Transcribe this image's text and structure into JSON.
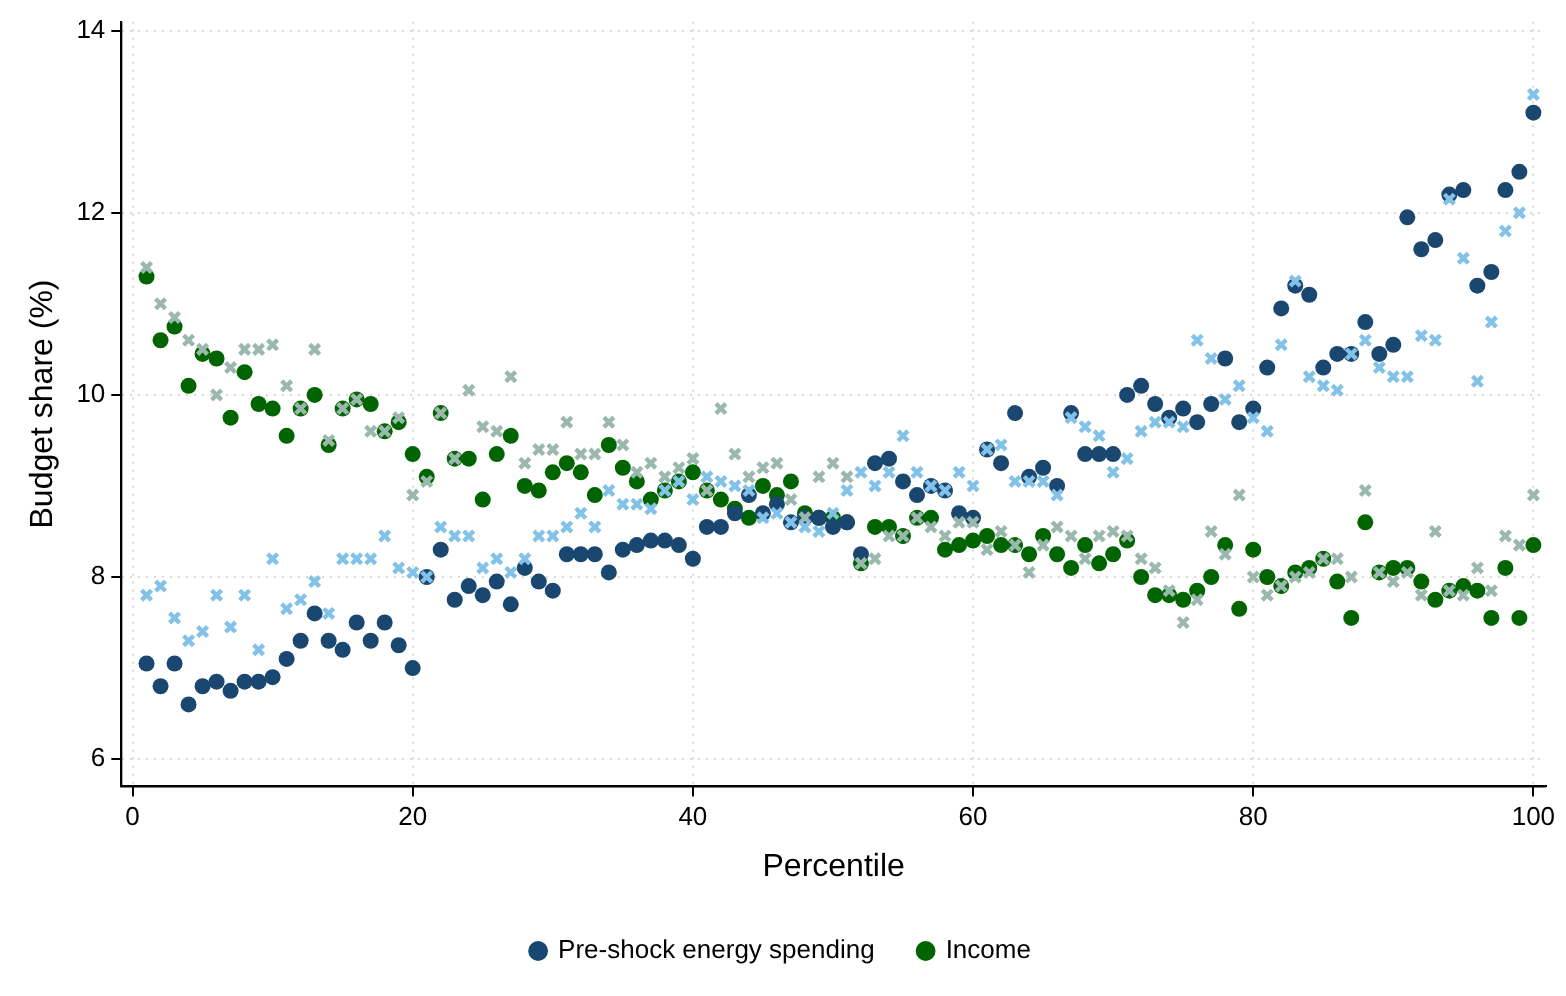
{
  "chart_data": {
    "type": "scatter",
    "xlabel": "Percentile",
    "ylabel": "Budget share (%)",
    "xlim": [
      -0.8,
      100.9
    ],
    "ylim": [
      5.7,
      14.1
    ],
    "xticks": [
      0,
      20,
      40,
      60,
      80,
      100
    ],
    "yticks": [
      6,
      8,
      10,
      12,
      14
    ],
    "grid": true,
    "legend": "bottom",
    "x": [
      1,
      2,
      3,
      4,
      5,
      6,
      7,
      8,
      9,
      10,
      11,
      12,
      13,
      14,
      15,
      16,
      17,
      18,
      19,
      20,
      21,
      22,
      23,
      24,
      25,
      26,
      27,
      28,
      29,
      30,
      31,
      32,
      33,
      34,
      35,
      36,
      37,
      38,
      39,
      40,
      41,
      42,
      43,
      44,
      45,
      46,
      47,
      48,
      49,
      50,
      51,
      52,
      53,
      54,
      55,
      56,
      57,
      58,
      59,
      60,
      61,
      62,
      63,
      64,
      65,
      66,
      67,
      68,
      69,
      70,
      71,
      72,
      73,
      74,
      75,
      76,
      77,
      78,
      79,
      80,
      81,
      82,
      83,
      84,
      85,
      86,
      87,
      88,
      89,
      90,
      91,
      92,
      93,
      94,
      95,
      96,
      97,
      98,
      99,
      100
    ],
    "series": [
      {
        "color": "#83c2e8",
        "marker": "cross",
        "values": [
          7.8,
          7.9,
          7.55,
          7.3,
          7.4,
          7.8,
          7.45,
          7.8,
          7.2,
          8.2,
          7.65,
          7.75,
          7.95,
          7.6,
          8.2,
          8.2,
          8.2,
          8.45,
          8.1,
          8.05,
          8.0,
          8.55,
          8.45,
          8.45,
          8.1,
          8.2,
          8.05,
          8.2,
          8.45,
          8.45,
          8.55,
          8.7,
          8.55,
          8.95,
          8.8,
          8.8,
          8.75,
          8.95,
          9.05,
          8.85,
          9.1,
          9.05,
          9.0,
          8.95,
          8.65,
          8.7,
          8.6,
          8.55,
          8.5,
          8.7,
          8.95,
          9.15,
          9.0,
          9.15,
          9.55,
          9.15,
          9.0,
          8.95,
          9.15,
          9.0,
          9.4,
          9.45,
          9.05,
          9.05,
          9.05,
          8.9,
          9.75,
          9.65,
          9.55,
          9.15,
          9.3,
          9.6,
          9.7,
          9.7,
          9.65,
          10.6,
          10.4,
          9.95,
          10.1,
          9.75,
          9.6,
          10.55,
          11.25,
          10.2,
          10.1,
          10.05,
          10.45,
          10.6,
          10.3,
          10.2,
          10.2,
          10.65,
          10.6,
          12.15,
          11.5,
          10.15,
          10.8,
          11.8,
          12.0,
          13.3
        ]
      },
      {
        "color": "#9ab8ad",
        "marker": "cross",
        "values": [
          11.4,
          11.0,
          10.85,
          10.6,
          10.5,
          10.0,
          10.3,
          10.5,
          10.5,
          10.55,
          10.1,
          9.85,
          10.5,
          9.5,
          9.85,
          9.95,
          9.6,
          9.6,
          9.75,
          8.9,
          9.05,
          9.8,
          9.3,
          10.05,
          9.65,
          9.6,
          10.2,
          9.25,
          9.4,
          9.4,
          9.7,
          9.35,
          9.35,
          9.7,
          9.45,
          9.15,
          9.25,
          9.1,
          9.2,
          9.3,
          8.95,
          9.85,
          9.35,
          9.1,
          9.2,
          9.25,
          8.85,
          8.65,
          9.1,
          9.25,
          9.1,
          8.15,
          8.2,
          8.45,
          8.45,
          8.65,
          8.55,
          8.45,
          8.6,
          8.6,
          8.3,
          8.5,
          8.35,
          8.05,
          8.35,
          8.55,
          8.45,
          8.2,
          8.45,
          8.5,
          8.45,
          8.2,
          8.1,
          7.85,
          7.5,
          7.75,
          8.5,
          8.25,
          8.9,
          8.0,
          7.8,
          7.9,
          8.0,
          8.05,
          8.2,
          8.2,
          8.0,
          8.95,
          8.05,
          7.95,
          8.05,
          7.8,
          8.5,
          7.85,
          7.8,
          8.1,
          7.85,
          8.45,
          8.35,
          8.9
        ]
      },
      {
        "name": "Pre-shock energy spending",
        "color": "#1a476f",
        "marker": "circle",
        "values": [
          7.05,
          6.8,
          7.05,
          6.6,
          6.8,
          6.85,
          6.75,
          6.85,
          6.85,
          6.9,
          7.1,
          7.3,
          7.6,
          7.3,
          7.2,
          7.5,
          7.3,
          7.5,
          7.25,
          7.0,
          8.0,
          8.3,
          7.75,
          7.9,
          7.8,
          7.95,
          7.7,
          8.1,
          7.95,
          7.85,
          8.25,
          8.25,
          8.25,
          8.05,
          8.3,
          8.35,
          8.4,
          8.4,
          8.35,
          8.2,
          8.55,
          8.55,
          8.7,
          8.9,
          8.7,
          8.8,
          8.6,
          8.65,
          8.65,
          8.55,
          8.6,
          8.25,
          9.25,
          9.3,
          9.05,
          8.9,
          9.0,
          8.95,
          8.7,
          8.65,
          9.4,
          9.25,
          9.8,
          9.1,
          9.2,
          9.0,
          9.8,
          9.35,
          9.35,
          9.35,
          10.0,
          10.1,
          9.9,
          9.75,
          9.85,
          9.7,
          9.9,
          10.4,
          9.7,
          9.85,
          10.3,
          10.95,
          11.2,
          11.1,
          10.3,
          10.45,
          10.45,
          10.8,
          10.45,
          10.55,
          11.95,
          11.6,
          11.7,
          12.2,
          12.25,
          11.2,
          11.35,
          12.25,
          12.45,
          13.1
        ]
      },
      {
        "name": "Income",
        "color": "#006400",
        "marker": "circle",
        "values": [
          11.3,
          10.6,
          10.75,
          10.1,
          10.45,
          10.4,
          9.75,
          10.25,
          9.9,
          9.85,
          9.55,
          9.85,
          10.0,
          9.45,
          9.85,
          9.95,
          9.9,
          9.6,
          9.7,
          9.35,
          9.1,
          9.8,
          9.3,
          9.3,
          8.85,
          9.35,
          9.55,
          9.0,
          8.95,
          9.15,
          9.25,
          9.15,
          8.9,
          9.45,
          9.2,
          9.05,
          8.85,
          8.95,
          9.05,
          9.15,
          8.95,
          8.85,
          8.75,
          8.65,
          9.0,
          8.9,
          9.05,
          8.7,
          8.65,
          8.65,
          8.6,
          8.15,
          8.55,
          8.55,
          8.45,
          8.65,
          8.65,
          8.3,
          8.35,
          8.4,
          8.45,
          8.35,
          8.35,
          8.25,
          8.45,
          8.25,
          8.1,
          8.35,
          8.15,
          8.25,
          8.4,
          8.0,
          7.8,
          7.8,
          7.75,
          7.85,
          8.0,
          8.35,
          7.65,
          8.3,
          8.0,
          7.9,
          8.05,
          8.1,
          8.2,
          7.95,
          7.55,
          8.6,
          8.05,
          8.1,
          8.1,
          7.95,
          7.75,
          7.85,
          7.9,
          7.85,
          7.55,
          8.1,
          7.55,
          8.35
        ]
      }
    ]
  }
}
